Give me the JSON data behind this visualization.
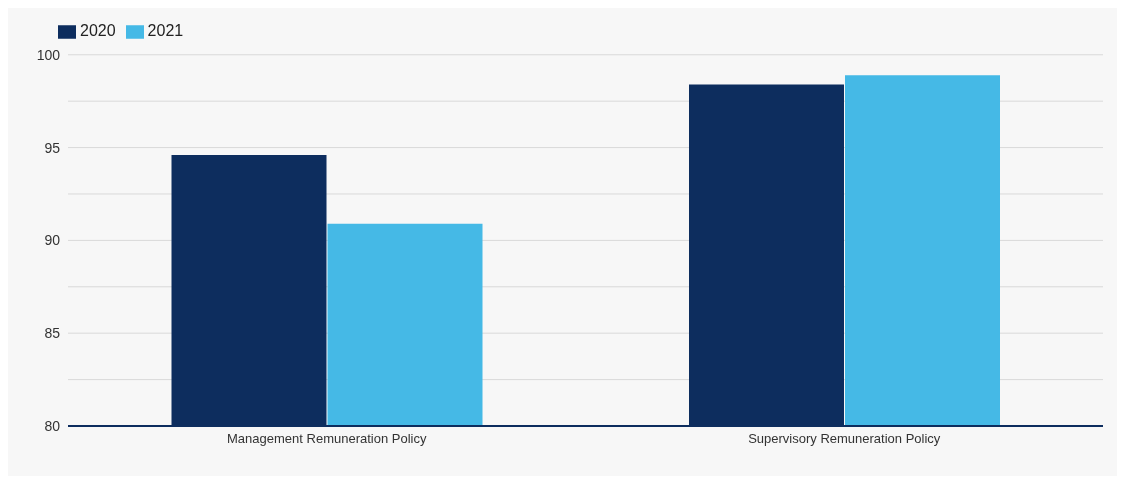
{
  "chart_data": {
    "type": "bar",
    "categories": [
      "Management Remuneration Policy",
      "Supervisory Remuneration Policy"
    ],
    "series": [
      {
        "name": "2020",
        "color": "#0d2d5e",
        "values": [
          94.6,
          98.4
        ]
      },
      {
        "name": "2021",
        "color": "#45b9e6",
        "values": [
          90.9,
          98.9
        ]
      }
    ],
    "ylim": [
      80,
      100
    ],
    "yticks": [
      80,
      {
        "value": 82.5,
        "label": null
      },
      85,
      {
        "value": 87.5,
        "label": null
      },
      90,
      {
        "value": 92.5,
        "label": null
      },
      95,
      {
        "value": 97.5,
        "label": null
      },
      100
    ],
    "grid": "y",
    "legend": "top left"
  }
}
